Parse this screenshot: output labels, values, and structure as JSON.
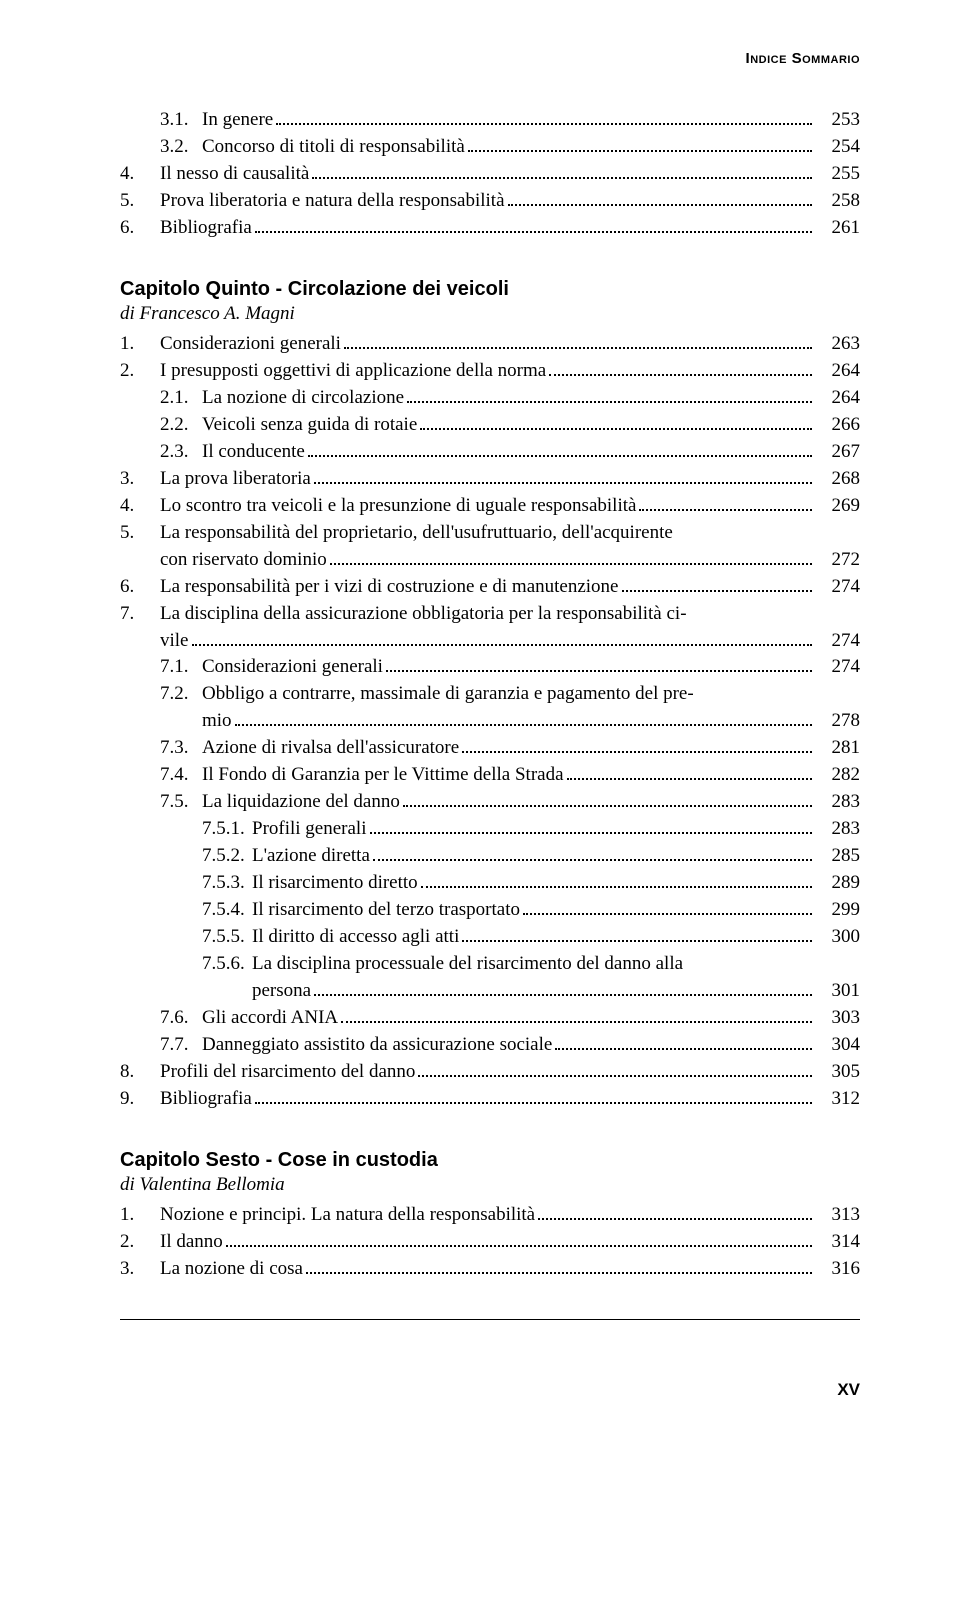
{
  "running_header": "Indice Sommario",
  "page_number_roman": "XV",
  "blocks": [
    {
      "entries": [
        {
          "indent": 1,
          "num": "3.1.",
          "text": "In genere",
          "page": "253"
        },
        {
          "indent": 1,
          "num": "3.2.",
          "text": "Concorso di titoli di responsabilità",
          "page": "254"
        },
        {
          "indent": 0,
          "num": "4.",
          "text": "Il nesso di causalità",
          "page": "255"
        },
        {
          "indent": 0,
          "num": "5.",
          "text": "Prova liberatoria e natura della responsabilità",
          "page": "258"
        },
        {
          "indent": 0,
          "num": "6.",
          "text": "Bibliografia",
          "page": "261"
        }
      ]
    },
    {
      "chapter_title": "Capitolo Quinto - Circolazione dei veicoli",
      "chapter_author": "di Francesco A. Magni",
      "entries": [
        {
          "indent": 0,
          "num": "1.",
          "text": "Considerazioni generali",
          "page": "263"
        },
        {
          "indent": 0,
          "num": "2.",
          "text": "I presupposti oggettivi di applicazione della norma",
          "page": "264"
        },
        {
          "indent": 1,
          "num": "2.1.",
          "text": "La nozione di circolazione",
          "page": "264"
        },
        {
          "indent": 1,
          "num": "2.2.",
          "text": "Veicoli senza guida di rotaie",
          "page": "266"
        },
        {
          "indent": 1,
          "num": "2.3.",
          "text": "Il conducente",
          "page": "267"
        },
        {
          "indent": 0,
          "num": "3.",
          "text": "La prova liberatoria",
          "page": "268"
        },
        {
          "indent": 0,
          "num": "4.",
          "text": "Lo scontro tra veicoli e la presunzione di uguale responsabilità",
          "page": "269"
        },
        {
          "indent": 0,
          "num": "5.",
          "text": "La responsabilità del proprietario, dell'usufruttuario, dell'acquirente",
          "wrap": "con riservato dominio",
          "page": "272"
        },
        {
          "indent": 0,
          "num": "6.",
          "text": "La responsabilità per i vizi di costruzione e di manutenzione",
          "page": "274"
        },
        {
          "indent": 0,
          "num": "7.",
          "text": "La disciplina della assicurazione obbligatoria per la responsabilità ci-",
          "wrap": "vile",
          "page": "274"
        },
        {
          "indent": 1,
          "num": "7.1.",
          "text": "Considerazioni generali",
          "page": "274"
        },
        {
          "indent": 1,
          "num": "7.2.",
          "text": "Obbligo a contrarre, massimale di garanzia e pagamento del pre-",
          "wrap": "mio",
          "wrap_indent": 2,
          "page": "278"
        },
        {
          "indent": 1,
          "num": "7.3.",
          "text": "Azione di rivalsa dell'assicuratore",
          "page": "281"
        },
        {
          "indent": 1,
          "num": "7.4.",
          "text": "Il Fondo di Garanzia per le Vittime della Strada",
          "page": "282"
        },
        {
          "indent": 1,
          "num": "7.5.",
          "text": "La liquidazione del danno",
          "page": "283"
        },
        {
          "indent": 2,
          "num": "7.5.1.",
          "text": "Profili generali",
          "page": "283"
        },
        {
          "indent": 2,
          "num": "7.5.2.",
          "text": "L'azione diretta",
          "page": "285"
        },
        {
          "indent": 2,
          "num": "7.5.3.",
          "text": "Il risarcimento diretto",
          "page": "289"
        },
        {
          "indent": 2,
          "num": "7.5.4.",
          "text": "Il risarcimento del terzo trasportato",
          "page": "299"
        },
        {
          "indent": 2,
          "num": "7.5.5.",
          "text": "Il diritto di accesso agli atti",
          "page": "300"
        },
        {
          "indent": 2,
          "num": "7.5.6.",
          "text": "La disciplina processuale del risarcimento del danno alla",
          "wrap": "persona",
          "wrap_indent": 3,
          "page": "301"
        },
        {
          "indent": 1,
          "num": "7.6.",
          "text": "Gli accordi ANIA",
          "page": "303"
        },
        {
          "indent": 1,
          "num": "7.7.",
          "text": "Danneggiato assistito da assicurazione sociale",
          "page": "304"
        },
        {
          "indent": 0,
          "num": "8.",
          "text": "Profili del risarcimento del danno",
          "page": "305"
        },
        {
          "indent": 0,
          "num": "9.",
          "text": "Bibliografia",
          "page": "312"
        }
      ]
    },
    {
      "chapter_title": "Capitolo Sesto - Cose in custodia",
      "chapter_author": "di Valentina Bellomia",
      "entries": [
        {
          "indent": 0,
          "num": "1.",
          "text": "Nozione e principi. La natura della responsabilità",
          "page": "313"
        },
        {
          "indent": 0,
          "num": "2.",
          "text": "Il danno",
          "page": "314"
        },
        {
          "indent": 0,
          "num": "3.",
          "text": "La nozione di cosa",
          "page": "316"
        }
      ]
    }
  ]
}
